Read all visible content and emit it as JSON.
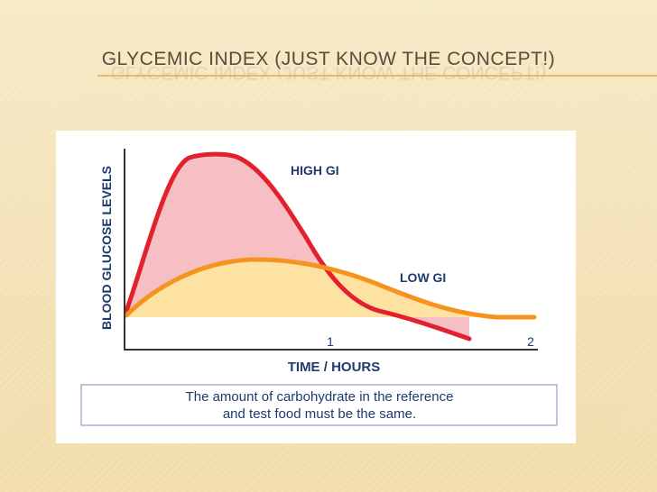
{
  "slide": {
    "title": "GLYCEMIC INDEX (JUST KNOW THE CONCEPT!)",
    "figure": {
      "y_axis_label": "BLOOD GLUCOSE LEVELS",
      "x_axis_label": "TIME / HOURS",
      "x_tick_labels": [
        "1",
        "2"
      ],
      "curve_labels": [
        "HIGH GI",
        "LOW GI"
      ],
      "caption": [
        "The amount of carbohydrate in the reference",
        "and test food must be the same."
      ]
    }
  }
}
